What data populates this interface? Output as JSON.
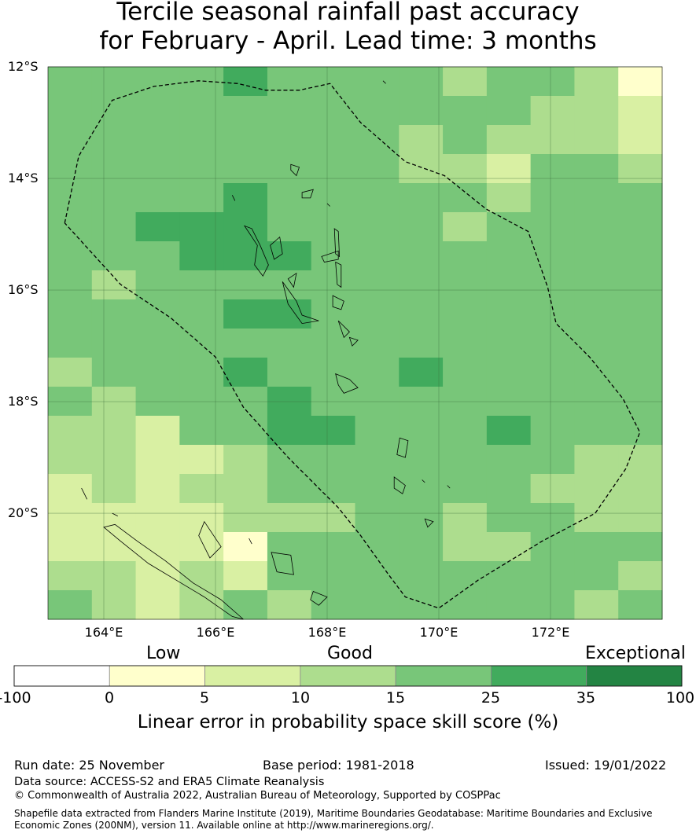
{
  "title": {
    "line1": "Tercile seasonal rainfall past accuracy",
    "line2": "for February - April. Lead time: 3 months"
  },
  "map": {
    "lon_range": [
      163.0,
      174.0
    ],
    "lat_range": [
      -21.9,
      -12.0
    ],
    "lat_ticks": [
      {
        "value": -12,
        "label": "12°S"
      },
      {
        "value": -14,
        "label": "14°S"
      },
      {
        "value": -16,
        "label": "16°S"
      },
      {
        "value": -18,
        "label": "18°S"
      },
      {
        "value": -20,
        "label": "20°S"
      }
    ],
    "lon_ticks": [
      {
        "value": 164,
        "label": "164°E"
      },
      {
        "value": 166,
        "label": "166°E"
      },
      {
        "value": 168,
        "label": "168°E"
      },
      {
        "value": 170,
        "label": "170°E"
      },
      {
        "value": 172,
        "label": "172°E"
      }
    ],
    "skill_colors": {
      "0": "#ffffcc",
      "1": "#d9f0a3",
      "2": "#addd8e",
      "3": "#78c679",
      "4": "#41ab5d",
      "5": "#238443"
    },
    "skill_grid_note": "class index per 0.833° cell: 0=0-5, 1=5-10, 2=10-15, 3=15-25, 4=25-35",
    "skill_grid": [
      [
        3,
        3,
        3,
        3,
        4,
        3,
        3,
        3,
        3,
        2,
        3,
        3,
        2,
        0
      ],
      [
        3,
        3,
        3,
        3,
        3,
        3,
        3,
        3,
        3,
        3,
        3,
        2,
        2,
        1
      ],
      [
        3,
        3,
        3,
        3,
        3,
        3,
        3,
        3,
        2,
        3,
        2,
        2,
        2,
        1
      ],
      [
        3,
        3,
        3,
        3,
        3,
        3,
        3,
        3,
        2,
        2,
        1,
        3,
        3,
        2
      ],
      [
        3,
        3,
        3,
        3,
        4,
        3,
        3,
        3,
        3,
        3,
        2,
        3,
        3,
        3
      ],
      [
        3,
        3,
        4,
        4,
        4,
        3,
        3,
        3,
        3,
        2,
        3,
        3,
        3,
        3
      ],
      [
        3,
        3,
        3,
        4,
        4,
        4,
        3,
        3,
        3,
        3,
        3,
        3,
        3,
        3
      ],
      [
        3,
        2,
        3,
        3,
        3,
        3,
        3,
        3,
        3,
        3,
        3,
        3,
        3,
        3
      ],
      [
        3,
        3,
        3,
        3,
        4,
        4,
        3,
        3,
        3,
        3,
        3,
        3,
        3,
        3
      ],
      [
        3,
        3,
        3,
        3,
        3,
        3,
        3,
        3,
        3,
        3,
        3,
        3,
        3,
        3
      ],
      [
        2,
        3,
        3,
        3,
        4,
        3,
        3,
        3,
        4,
        3,
        3,
        3,
        3,
        3
      ],
      [
        3,
        2,
        3,
        3,
        3,
        4,
        3,
        3,
        3,
        3,
        3,
        3,
        3,
        3
      ],
      [
        2,
        2,
        1,
        3,
        3,
        4,
        4,
        3,
        3,
        3,
        4,
        3,
        3,
        3
      ],
      [
        2,
        2,
        1,
        1,
        2,
        3,
        3,
        3,
        3,
        3,
        3,
        3,
        2,
        2
      ],
      [
        1,
        2,
        1,
        2,
        2,
        3,
        3,
        3,
        3,
        3,
        3,
        2,
        2,
        2
      ],
      [
        1,
        1,
        1,
        1,
        2,
        2,
        2,
        3,
        3,
        2,
        3,
        3,
        2,
        2
      ],
      [
        1,
        1,
        1,
        1,
        0,
        3,
        3,
        3,
        3,
        2,
        2,
        3,
        3,
        3
      ],
      [
        2,
        2,
        1,
        2,
        1,
        3,
        3,
        3,
        3,
        3,
        3,
        3,
        3,
        2
      ],
      [
        3,
        2,
        1,
        2,
        3,
        2,
        3,
        3,
        3,
        3,
        3,
        3,
        2,
        3
      ]
    ],
    "eez_boundary": [
      [
        163.3,
        -14.8
      ],
      [
        163.55,
        -13.6
      ],
      [
        164.15,
        -12.6
      ],
      [
        164.9,
        -12.35
      ],
      [
        165.7,
        -12.25
      ],
      [
        166.4,
        -12.3
      ],
      [
        166.9,
        -12.42
      ],
      [
        167.5,
        -12.42
      ],
      [
        168.05,
        -12.3
      ],
      [
        168.6,
        -13.0
      ],
      [
        169.4,
        -13.7
      ],
      [
        170.1,
        -13.95
      ],
      [
        170.85,
        -14.55
      ],
      [
        171.6,
        -14.95
      ],
      [
        171.95,
        -15.95
      ],
      [
        172.1,
        -16.6
      ],
      [
        172.7,
        -17.2
      ],
      [
        173.3,
        -17.95
      ],
      [
        173.6,
        -18.55
      ],
      [
        173.35,
        -19.2
      ],
      [
        172.8,
        -20.0
      ],
      [
        171.85,
        -20.5
      ],
      [
        170.7,
        -21.2
      ],
      [
        170.0,
        -21.7
      ],
      [
        169.4,
        -21.5
      ],
      [
        169.1,
        -21.1
      ],
      [
        168.6,
        -20.4
      ],
      [
        168.2,
        -19.9
      ],
      [
        167.3,
        -19.0
      ],
      [
        166.5,
        -18.1
      ],
      [
        166.0,
        -17.2
      ],
      [
        165.2,
        -16.5
      ],
      [
        164.3,
        -15.9
      ],
      [
        163.3,
        -14.8
      ]
    ],
    "islands": [
      [
        [
          166.52,
          -14.85
        ],
        [
          166.75,
          -15.2
        ],
        [
          166.7,
          -15.55
        ],
        [
          166.85,
          -15.75
        ],
        [
          166.95,
          -15.55
        ],
        [
          166.8,
          -15.2
        ],
        [
          166.65,
          -14.9
        ]
      ],
      [
        [
          166.98,
          -15.2
        ],
        [
          167.15,
          -15.05
        ],
        [
          167.2,
          -15.35
        ],
        [
          167.05,
          -15.45
        ]
      ],
      [
        [
          167.3,
          -15.8
        ],
        [
          167.45,
          -15.7
        ],
        [
          167.4,
          -15.95
        ]
      ],
      [
        [
          167.55,
          -14.25
        ],
        [
          167.75,
          -14.2
        ],
        [
          167.7,
          -14.35
        ],
        [
          167.55,
          -14.35
        ]
      ],
      [
        [
          167.35,
          -13.75
        ],
        [
          167.5,
          -13.8
        ],
        [
          167.45,
          -13.95
        ],
        [
          167.35,
          -13.85
        ]
      ],
      [
        [
          167.9,
          -15.4
        ],
        [
          168.2,
          -15.3
        ],
        [
          168.2,
          -15.45
        ],
        [
          167.95,
          -15.5
        ]
      ],
      [
        [
          168.13,
          -14.9
        ],
        [
          168.2,
          -14.95
        ],
        [
          168.22,
          -15.4
        ],
        [
          168.15,
          -15.35
        ]
      ],
      [
        [
          168.15,
          -15.5
        ],
        [
          168.25,
          -15.55
        ],
        [
          168.25,
          -15.95
        ],
        [
          168.18,
          -15.9
        ]
      ],
      [
        [
          167.2,
          -15.85
        ],
        [
          167.45,
          -16.2
        ],
        [
          167.55,
          -16.45
        ],
        [
          167.85,
          -16.55
        ],
        [
          167.55,
          -16.6
        ],
        [
          167.3,
          -16.25
        ]
      ],
      [
        [
          168.1,
          -16.1
        ],
        [
          168.3,
          -16.2
        ],
        [
          168.25,
          -16.35
        ],
        [
          168.1,
          -16.3
        ]
      ],
      [
        [
          168.2,
          -16.55
        ],
        [
          168.4,
          -16.75
        ],
        [
          168.3,
          -16.85
        ]
      ],
      [
        [
          168.4,
          -16.85
        ],
        [
          168.55,
          -16.9
        ],
        [
          168.45,
          -17.0
        ]
      ],
      [
        [
          168.15,
          -17.5
        ],
        [
          168.4,
          -17.6
        ],
        [
          168.55,
          -17.75
        ],
        [
          168.3,
          -17.85
        ],
        [
          168.2,
          -17.7
        ]
      ],
      [
        [
          169.3,
          -18.65
        ],
        [
          169.45,
          -18.7
        ],
        [
          169.4,
          -19.0
        ],
        [
          169.25,
          -18.95
        ]
      ],
      [
        [
          169.2,
          -19.35
        ],
        [
          169.4,
          -19.5
        ],
        [
          169.35,
          -19.65
        ],
        [
          169.2,
          -19.55
        ]
      ],
      [
        [
          169.7,
          -19.4
        ],
        [
          169.75,
          -19.45
        ]
      ],
      [
        [
          170.15,
          -19.5
        ],
        [
          170.2,
          -19.55
        ]
      ],
      [
        [
          169.75,
          -20.1
        ],
        [
          169.9,
          -20.15
        ],
        [
          169.8,
          -20.25
        ]
      ],
      [
        [
          166.3,
          -14.3
        ],
        [
          166.35,
          -14.4
        ]
      ],
      [
        [
          168.0,
          -14.45
        ],
        [
          168.05,
          -14.5
        ]
      ],
      [
        [
          169.0,
          -12.25
        ],
        [
          169.05,
          -12.3
        ]
      ],
      [
        [
          165.8,
          -20.15
        ],
        [
          166.1,
          -20.6
        ],
        [
          165.9,
          -20.8
        ],
        [
          165.7,
          -20.4
        ]
      ],
      [
        [
          164.0,
          -20.25
        ],
        [
          164.3,
          -20.5
        ],
        [
          164.8,
          -20.9
        ],
        [
          165.3,
          -21.2
        ],
        [
          165.8,
          -21.5
        ],
        [
          166.3,
          -21.85
        ],
        [
          166.5,
          -21.9
        ],
        [
          166.1,
          -21.55
        ],
        [
          165.6,
          -21.25
        ],
        [
          165.1,
          -20.85
        ],
        [
          164.6,
          -20.5
        ],
        [
          164.2,
          -20.2
        ]
      ],
      [
        [
          163.6,
          -19.55
        ],
        [
          163.7,
          -19.75
        ]
      ],
      [
        [
          164.15,
          -20.0
        ],
        [
          164.25,
          -20.05
        ]
      ],
      [
        [
          167.0,
          -20.7
        ],
        [
          167.35,
          -20.75
        ],
        [
          167.4,
          -21.1
        ],
        [
          167.1,
          -21.05
        ]
      ],
      [
        [
          167.75,
          -21.4
        ],
        [
          168.0,
          -21.5
        ],
        [
          167.85,
          -21.65
        ],
        [
          167.7,
          -21.55
        ]
      ],
      [
        [
          166.6,
          -20.45
        ],
        [
          166.65,
          -20.55
        ]
      ]
    ]
  },
  "colorbar": {
    "categories": [
      {
        "label": "Low"
      },
      {
        "label": "Good"
      },
      {
        "label": "Exceptional"
      }
    ],
    "bins": [
      {
        "from": "-100",
        "to": "0",
        "color": "#ffffff"
      },
      {
        "from": "0",
        "to": "5",
        "color": "#ffffcc"
      },
      {
        "from": "5",
        "to": "10",
        "color": "#d9f0a3"
      },
      {
        "from": "10",
        "to": "15",
        "color": "#addd8e"
      },
      {
        "from": "15",
        "to": "25",
        "color": "#78c679"
      },
      {
        "from": "25",
        "to": "35",
        "color": "#41ab5d"
      },
      {
        "from": "35",
        "to": "100",
        "color": "#238443"
      }
    ],
    "ticks": [
      "-100",
      "0",
      "5",
      "10",
      "15",
      "25",
      "35",
      "100"
    ],
    "label": "Linear error in probability space skill score (%)"
  },
  "footer": {
    "run_date": "Run date: 25 November",
    "base_period": "Base period: 1981-2018",
    "issued": "Issued: 19/01/2022",
    "data_source": "Data source: ACCESS-S2 and ERA5 Climate Reanalysis",
    "copyright": "© Commonwealth of Australia 2022, Australian Bureau of Meteorology, Supported by COSPPac",
    "shapefile_line1": "Shapefile data extracted from Flanders Marine Institute (2019), Maritime Boundaries Geodatabase: Maritime Boundaries and Exclusive",
    "shapefile_line2": "Economic Zones (200NM), version 11. Available online at http://www.marineregions.org/."
  }
}
